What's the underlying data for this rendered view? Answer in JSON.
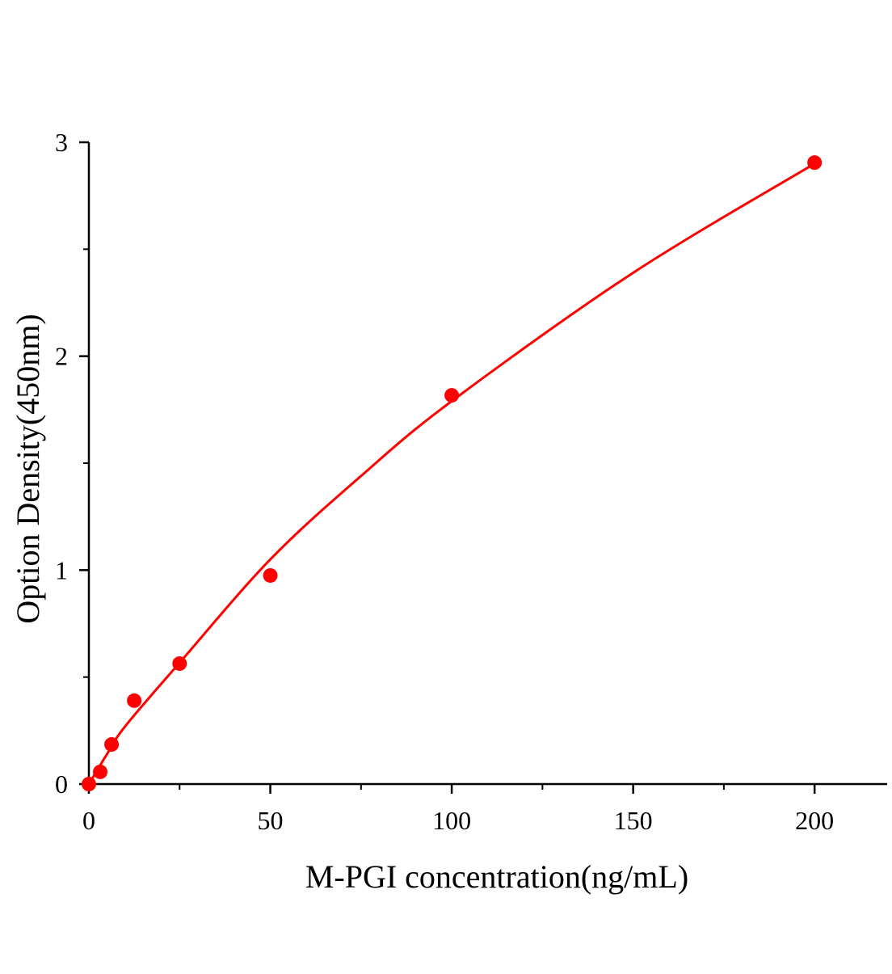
{
  "chart_data": {
    "type": "scatter",
    "title": "",
    "xlabel": "M-PGI concentration(ng/mL)",
    "ylabel": "Option Density(450nm)",
    "xlim": [
      0,
      220
    ],
    "ylim": [
      0,
      3
    ],
    "x_ticks": [
      0,
      50,
      100,
      150,
      200
    ],
    "x_minor_ticks": [
      25,
      75,
      125,
      175
    ],
    "y_ticks": [
      0,
      1,
      2,
      3
    ],
    "y_minor_ticks": [
      0.5,
      1.5,
      2.5
    ],
    "grid": false,
    "legend": "none",
    "colors": {
      "points": "#ff0000",
      "curve": "#ff0000",
      "axes": "#000000"
    },
    "points": {
      "x": [
        0,
        3.125,
        6.25,
        12.5,
        25,
        50,
        100,
        200
      ],
      "y": [
        0.0,
        0.057,
        0.185,
        0.39,
        0.563,
        0.975,
        1.817,
        2.905
      ]
    },
    "fit_curve": {
      "x": [
        0,
        5,
        10,
        25,
        50,
        75,
        100,
        150,
        200
      ],
      "y": [
        0,
        0.14,
        0.27,
        0.567,
        1.05,
        1.44,
        1.79,
        2.39,
        2.9
      ]
    }
  }
}
